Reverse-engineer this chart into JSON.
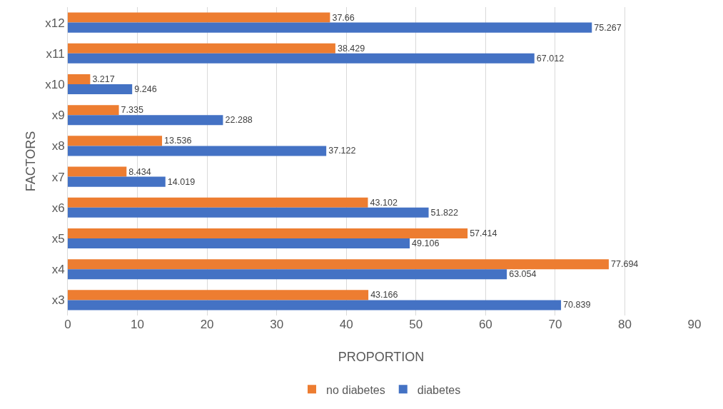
{
  "chart_data": {
    "type": "bar",
    "orientation": "horizontal",
    "xlabel": "PROPORTION",
    "ylabel": "FACTORS",
    "categories": [
      "x12",
      "x11",
      "x10",
      "x9",
      "x8",
      "x7",
      "x6",
      "x5",
      "x4",
      "x3"
    ],
    "series": [
      {
        "name": "no diabetes",
        "color": "#ed7d31",
        "values": [
          37.66,
          38.429,
          3.217,
          7.335,
          13.536,
          8.434,
          43.102,
          57.414,
          77.694,
          43.166
        ]
      },
      {
        "name": "diabetes",
        "color": "#4472c4",
        "values": [
          75.267,
          67.012,
          9.246,
          22.288,
          37.122,
          14.019,
          51.822,
          49.106,
          63.054,
          70.839
        ]
      }
    ],
    "xlim": [
      0,
      90
    ],
    "xticks": [
      0,
      10,
      20,
      30,
      40,
      50,
      60,
      70,
      80,
      90
    ],
    "grid": "x",
    "legend": "bottom",
    "data_labels": true
  }
}
